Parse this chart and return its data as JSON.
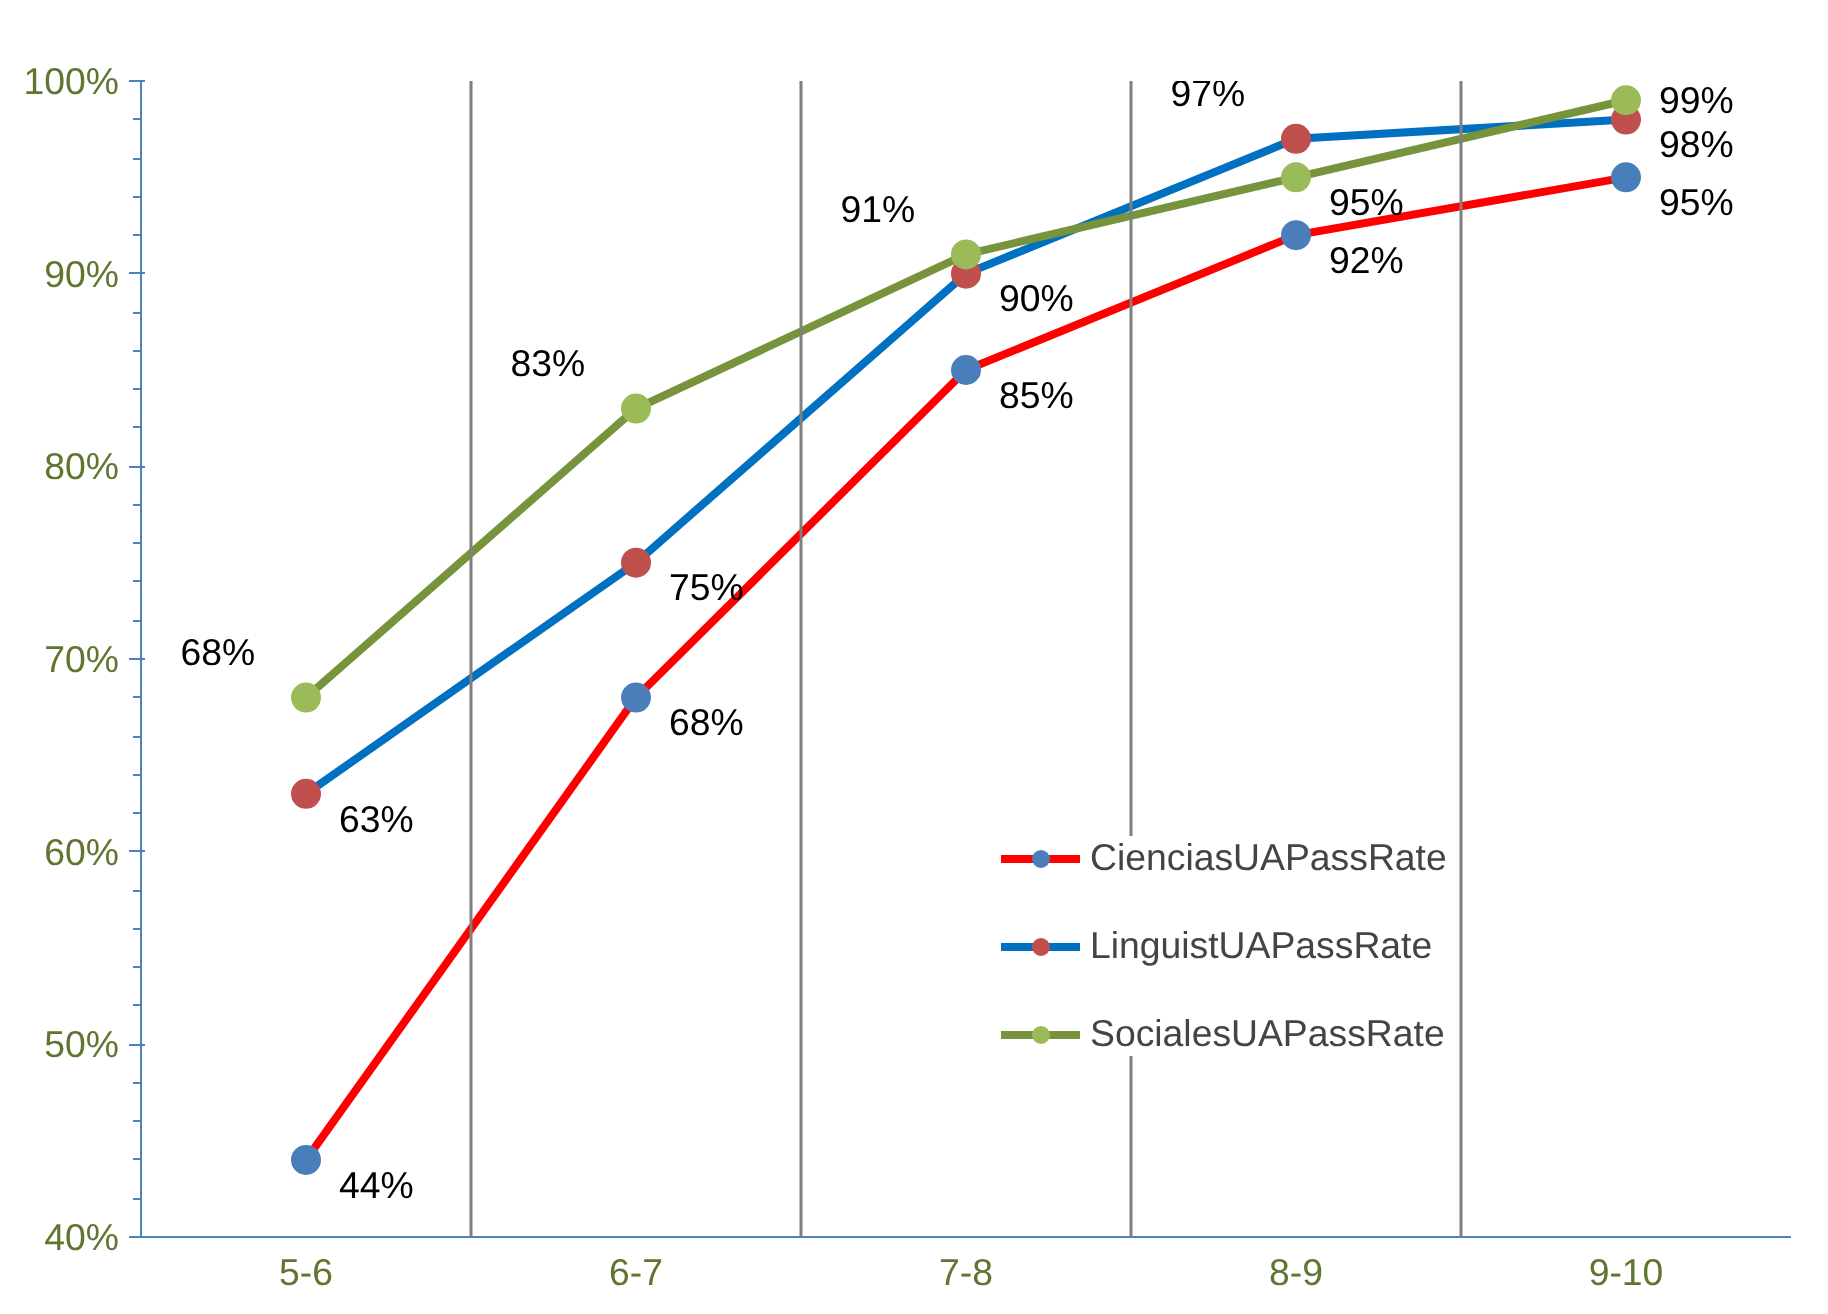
{
  "chart_data": {
    "type": "line",
    "categories": [
      "5-6",
      "6-7",
      "7-8",
      "8-9",
      "9-10"
    ],
    "series": [
      {
        "name": "CienciasUAPassRate",
        "color": "#ff0000",
        "colors": [
          "#4a7ebb",
          "#4a7ebb",
          "#4a7ebb",
          "#4a7ebb",
          "#4a7ebb"
        ],
        "values": [
          44,
          68,
          85,
          92,
          95
        ],
        "value_labels": [
          "44%",
          "68%",
          "85%",
          "92%",
          "95%"
        ]
      },
      {
        "name": "LinguistUAPassRate",
        "color": "#0070c0",
        "colors": [
          "#c0504d",
          "#c0504d",
          "#c0504d",
          "#c0504d",
          "#c0504d"
        ],
        "values": [
          63,
          75,
          90,
          97,
          98
        ],
        "value_labels": [
          "63%",
          "75%",
          "90%",
          "97%",
          "98%"
        ]
      },
      {
        "name": "SocialesUAPassRate",
        "color": "#77933c",
        "colors": [
          "#9bbb59",
          "#9bbb59",
          "#9bbb59",
          "#9bbb59",
          "#9bbb59"
        ],
        "values": [
          68,
          83,
          91,
          95,
          99
        ],
        "value_labels": [
          "68%",
          "83%",
          "91%",
          "95%",
          "99%"
        ]
      }
    ],
    "ylim": [
      40,
      100
    ],
    "yticks": [
      {
        "value": 40,
        "label": "40%"
      },
      {
        "value": 50,
        "label": "50%"
      },
      {
        "value": 60,
        "label": "60%"
      },
      {
        "value": 70,
        "label": "70%"
      },
      {
        "value": 80,
        "label": "80%"
      },
      {
        "value": 90,
        "label": "90%"
      },
      {
        "value": 100,
        "label": "100%"
      }
    ],
    "grid": "x",
    "legend": "right",
    "marker": "circle",
    "line_style": "solid"
  }
}
